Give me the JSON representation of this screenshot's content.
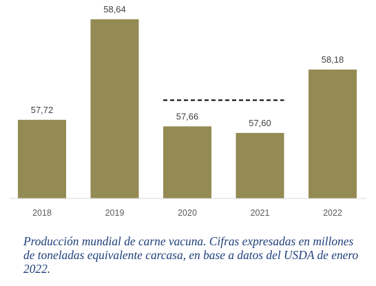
{
  "chart_data": {
    "type": "bar",
    "categories": [
      "2018",
      "2019",
      "2020",
      "2021",
      "2022"
    ],
    "values": [
      57.72,
      58.64,
      57.66,
      57.6,
      58.18
    ],
    "value_labels": [
      "57,72",
      "58,64",
      "57,66",
      "57,60",
      "58,18"
    ],
    "bar_color": "#948a54",
    "reference_line": {
      "from": "2020",
      "to": "2021",
      "style": "dashed"
    },
    "ylim": [
      57.0,
      58.7
    ],
    "grid": false,
    "legend": "none"
  },
  "caption": "Producción mundial de carne vacuna. Cifras expresadas en millones de toneladas equivalente carcasa, en base a datos del USDA de enero 2022."
}
